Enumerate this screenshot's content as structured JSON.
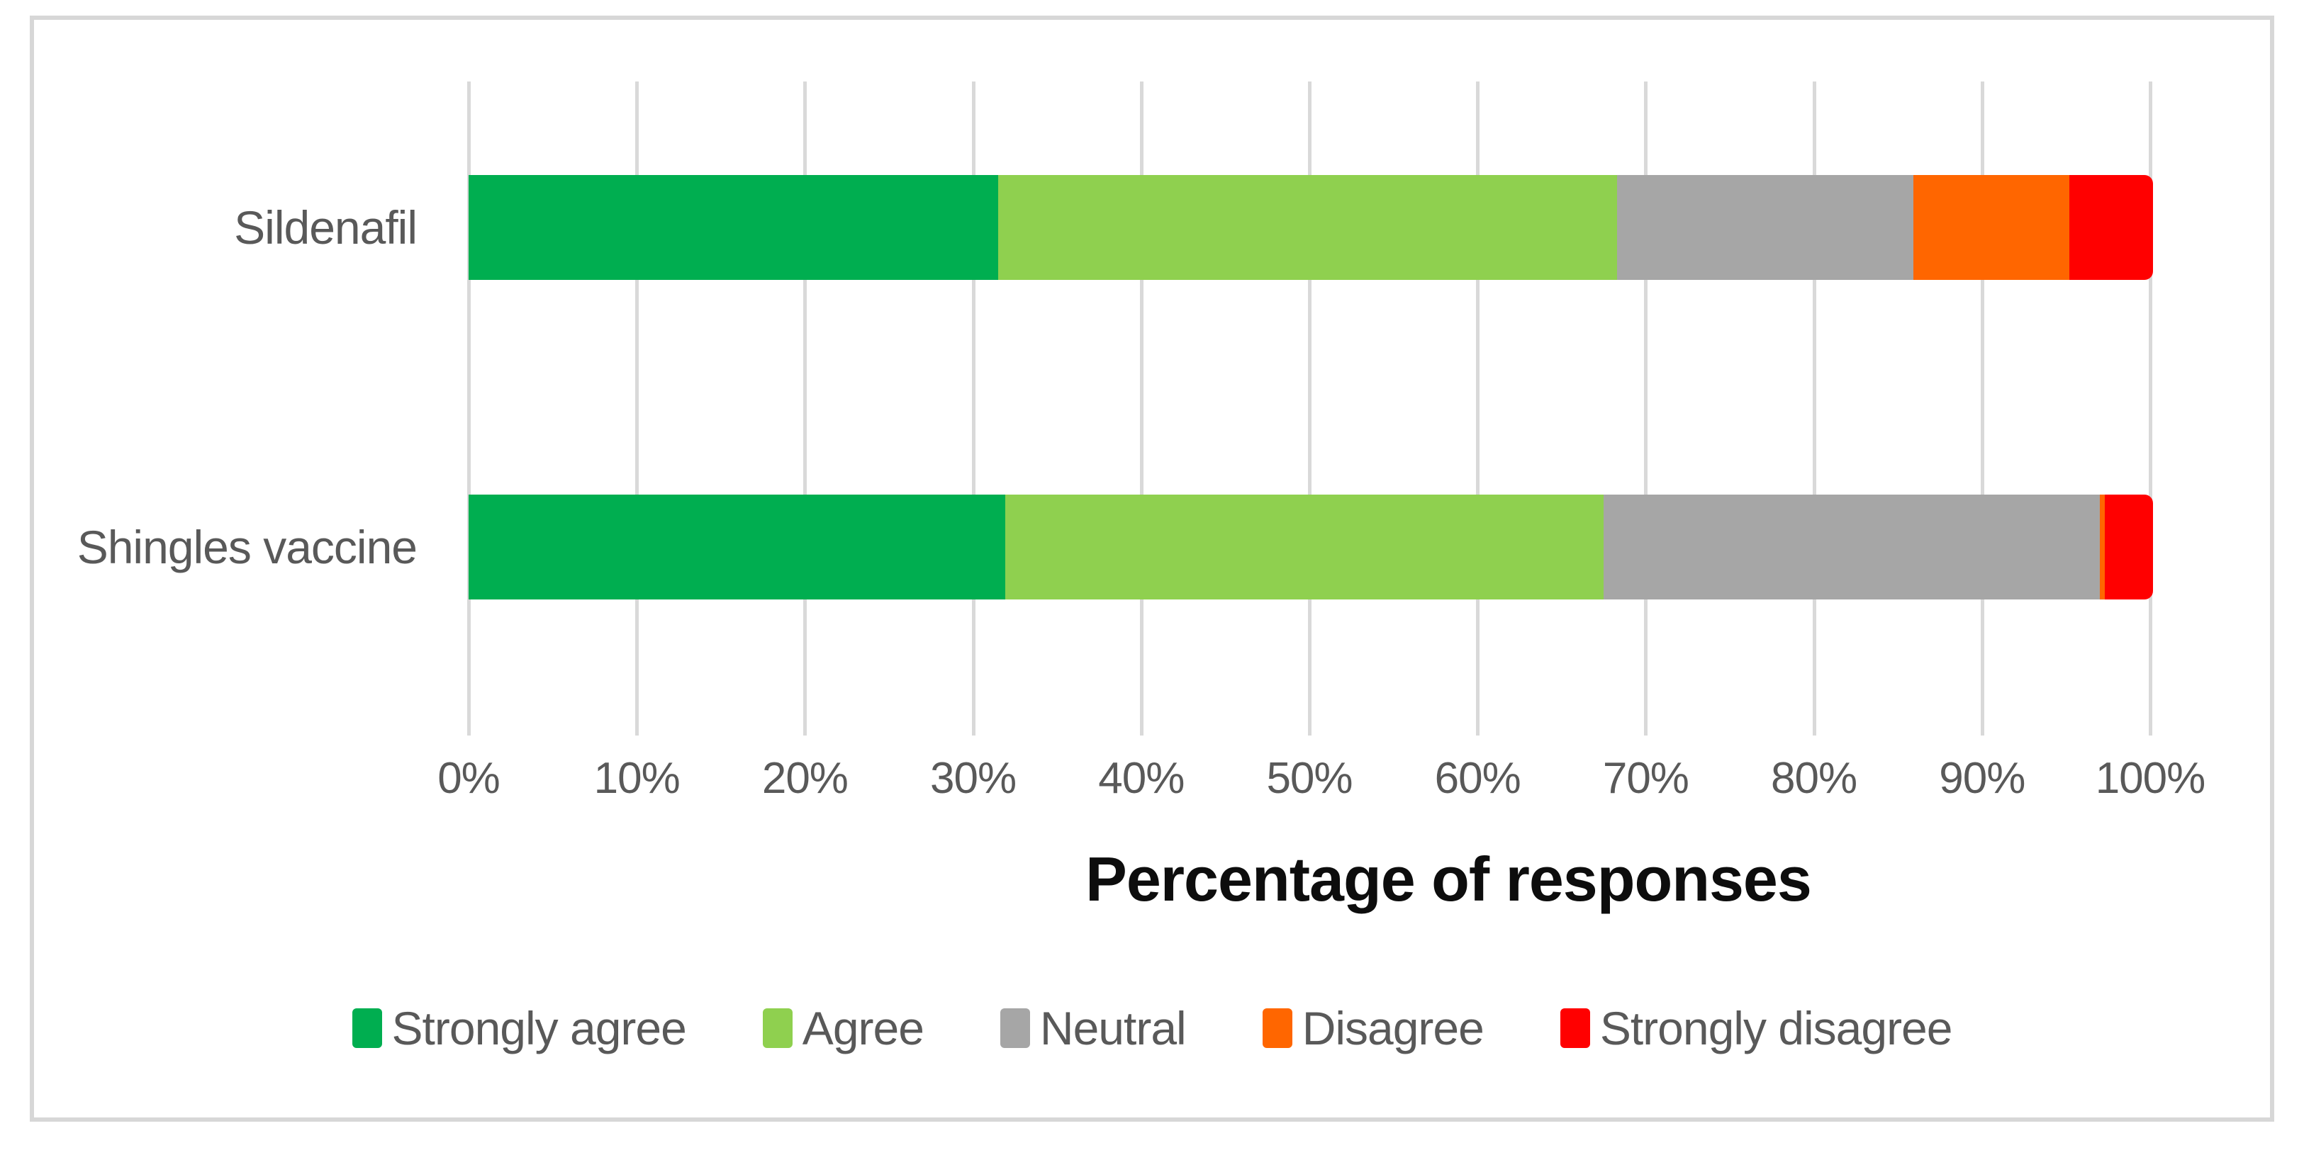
{
  "chart_data": {
    "type": "bar",
    "orientation": "horizontal",
    "stacked": true,
    "title": "",
    "xlabel": "Percentage of responses",
    "ylabel": "",
    "categories": [
      "Sildenafil",
      "Shingles vaccine"
    ],
    "series": [
      {
        "name": "Strongly agree",
        "color": "#00AE50",
        "values": [
          31.5,
          31.9
        ]
      },
      {
        "name": "Agree",
        "color": "#8FD04F",
        "values": [
          36.8,
          35.6
        ]
      },
      {
        "name": "Neutral",
        "color": "#A6A6A6",
        "values": [
          17.6,
          29.5
        ]
      },
      {
        "name": "Disagree",
        "color": "#FF6600",
        "values": [
          9.3,
          0.3
        ]
      },
      {
        "name": "Strongly disagree",
        "color": "#FF0000",
        "values": [
          4.8,
          2.7
        ]
      }
    ],
    "xticks": [
      "0%",
      "10%",
      "20%",
      "30%",
      "40%",
      "50%",
      "60%",
      "70%",
      "80%",
      "90%",
      "100%"
    ],
    "xlim": [
      0,
      100
    ],
    "grid": true,
    "gridline_color": "#D9D9D9",
    "legend_position": "bottom",
    "legend": [
      "Strongly agree",
      "Agree",
      "Neutral",
      "Disagree",
      "Strongly disagree"
    ]
  },
  "figure": {
    "border_color": "#D7D7D7",
    "background": "#FFFFFF",
    "axis_text_color": "#595959",
    "title_text_color": "#0D0D0D"
  }
}
